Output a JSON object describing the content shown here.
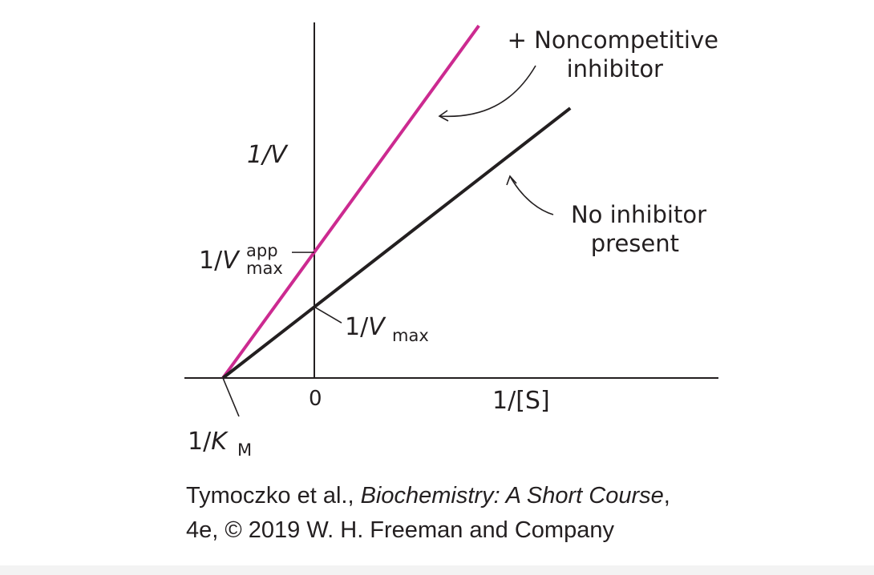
{
  "chart_data": {
    "type": "line",
    "xlabel": "1/[S]",
    "ylabel": "1/V",
    "x_origin_label": "0",
    "xlim": [
      -1,
      5
    ],
    "ylim": [
      0,
      5.8
    ],
    "series": [
      {
        "name": "+ Noncompetitive inhibitor",
        "color": "#cc2a90",
        "x": [
          -1,
          1.8
        ],
        "y": [
          0,
          5.3
        ]
      },
      {
        "name": "No inhibitor present",
        "color": "#231f20",
        "x": [
          -1,
          2.8
        ],
        "y": [
          0,
          4.06
        ]
      }
    ],
    "intercepts": {
      "x_intercept": {
        "value": -1,
        "label_prefix": "1/",
        "label_var": "K",
        "label_sub": "M"
      },
      "y_no_inhibitor": {
        "value": 1.07,
        "label_prefix": "1/",
        "label_var": "V",
        "label_sub": "max"
      },
      "y_inhibitor": {
        "value": 1.89,
        "label_prefix": "1/",
        "label_var": "V",
        "label_sup": "app",
        "label_sub": "max"
      }
    },
    "annotations": {
      "inhibitor_line1": "+ Noncompetitive",
      "inhibitor_line2": "inhibitor",
      "no_inhibitor_line1": "No inhibitor",
      "no_inhibitor_line2": "present"
    }
  },
  "credit": {
    "authors": "Tymoczko et al., ",
    "book": "Biochemistry: A Short Course",
    "comma": ",",
    "line2": "4e, © 2019 W. H. Freeman and Company"
  }
}
